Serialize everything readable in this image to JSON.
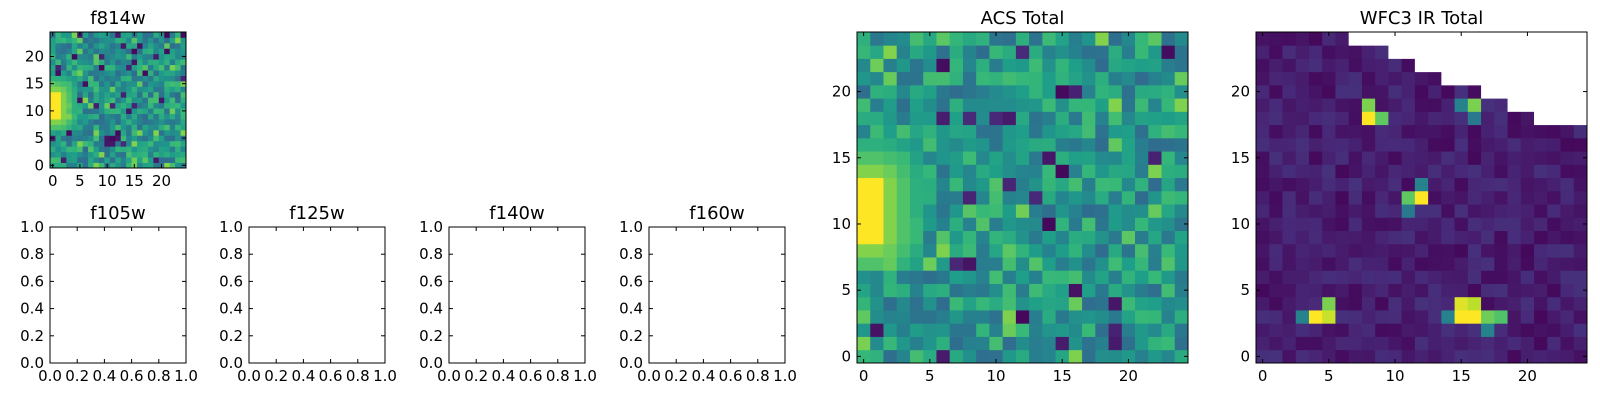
{
  "chart_data": [
    {
      "id": "f814w",
      "type": "heatmap",
      "title": "f814w",
      "cmap": "viridis",
      "grid_size": 25,
      "extent": [
        -0.5,
        24.5
      ],
      "xticks": [
        0,
        5,
        10,
        15,
        20
      ],
      "yticks": [
        0,
        5,
        10,
        15,
        20
      ],
      "hot_regions": [
        {
          "x": [
            0,
            1
          ],
          "y": [
            9,
            13
          ],
          "value": 1.0
        }
      ]
    },
    {
      "id": "f105w",
      "type": "empty",
      "title": "f105w",
      "xlim": [
        0,
        1
      ],
      "ylim": [
        0,
        1
      ],
      "xticks": [
        "0.0",
        "0.2",
        "0.4",
        "0.6",
        "0.8",
        "1.0"
      ],
      "yticks": [
        "0.0",
        "0.2",
        "0.4",
        "0.6",
        "0.8",
        "1.0"
      ]
    },
    {
      "id": "f125w",
      "type": "empty",
      "title": "f125w",
      "xlim": [
        0,
        1
      ],
      "ylim": [
        0,
        1
      ],
      "xticks": [
        "0.0",
        "0.2",
        "0.4",
        "0.6",
        "0.8",
        "1.0"
      ],
      "yticks": [
        "0.0",
        "0.2",
        "0.4",
        "0.6",
        "0.8",
        "1.0"
      ]
    },
    {
      "id": "f140w",
      "type": "empty",
      "title": "f140w",
      "xlim": [
        0,
        1
      ],
      "ylim": [
        0,
        1
      ],
      "xticks": [
        "0.0",
        "0.2",
        "0.4",
        "0.6",
        "0.8",
        "1.0"
      ],
      "yticks": [
        "0.0",
        "0.2",
        "0.4",
        "0.6",
        "0.8",
        "1.0"
      ]
    },
    {
      "id": "f160w",
      "type": "empty",
      "title": "f160w",
      "xlim": [
        0,
        1
      ],
      "ylim": [
        0,
        1
      ],
      "xticks": [
        "0.0",
        "0.2",
        "0.4",
        "0.6",
        "0.8",
        "1.0"
      ],
      "yticks": [
        "0.0",
        "0.2",
        "0.4",
        "0.6",
        "0.8",
        "1.0"
      ]
    },
    {
      "id": "acs_total",
      "type": "heatmap",
      "title": "ACS Total",
      "cmap": "viridis",
      "grid_size": 25,
      "extent": [
        -0.5,
        24.5
      ],
      "xticks": [
        0,
        5,
        10,
        15,
        20
      ],
      "yticks": [
        0,
        5,
        10,
        15,
        20
      ],
      "hot_regions": [
        {
          "x": [
            0,
            1
          ],
          "y": [
            9,
            13
          ],
          "value": 1.0
        }
      ]
    },
    {
      "id": "wfc3_ir_total",
      "type": "heatmap",
      "title": "WFC3 IR Total",
      "cmap": "viridis",
      "grid_size": 25,
      "extent": [
        -0.5,
        24.5
      ],
      "xticks": [
        0,
        5,
        10,
        15,
        20
      ],
      "yticks": [
        0,
        5,
        10,
        15,
        20
      ],
      "hot_spots": [
        {
          "x": 4,
          "y": 3,
          "value": 1.0
        },
        {
          "x": 5,
          "y": 3,
          "value": 0.92
        },
        {
          "x": 5,
          "y": 4,
          "value": 0.8
        },
        {
          "x": 3,
          "y": 3,
          "value": 0.45
        },
        {
          "x": 15,
          "y": 3,
          "value": 1.0
        },
        {
          "x": 16,
          "y": 3,
          "value": 1.0
        },
        {
          "x": 16,
          "y": 4,
          "value": 0.9
        },
        {
          "x": 15,
          "y": 4,
          "value": 0.95
        },
        {
          "x": 17,
          "y": 3,
          "value": 0.78
        },
        {
          "x": 18,
          "y": 3,
          "value": 0.72
        },
        {
          "x": 14,
          "y": 3,
          "value": 0.45
        },
        {
          "x": 17,
          "y": 2,
          "value": 0.45
        },
        {
          "x": 12,
          "y": 12,
          "value": 1.0
        },
        {
          "x": 11,
          "y": 12,
          "value": 0.75
        },
        {
          "x": 12,
          "y": 13,
          "value": 0.45
        },
        {
          "x": 11,
          "y": 11,
          "value": 0.4
        },
        {
          "x": 8,
          "y": 18,
          "value": 1.0
        },
        {
          "x": 8,
          "y": 19,
          "value": 0.8
        },
        {
          "x": 9,
          "y": 18,
          "value": 0.75
        },
        {
          "x": 16,
          "y": 19,
          "value": 0.8
        },
        {
          "x": 15,
          "y": 19,
          "value": 0.45
        },
        {
          "x": 16,
          "y": 18,
          "value": 0.4
        }
      ],
      "nan_edge": [
        {
          "x_from": 7,
          "y_from": 24
        },
        {
          "x_from": 10,
          "y_from": 23
        },
        {
          "x_from": 12,
          "y_from": 22
        },
        {
          "x_from": 14,
          "y_from": 21
        },
        {
          "x_from": 17,
          "y_from": 20
        },
        {
          "x_from": 19,
          "y_from": 19
        },
        {
          "x_from": 21,
          "y_from": 18
        }
      ]
    }
  ]
}
